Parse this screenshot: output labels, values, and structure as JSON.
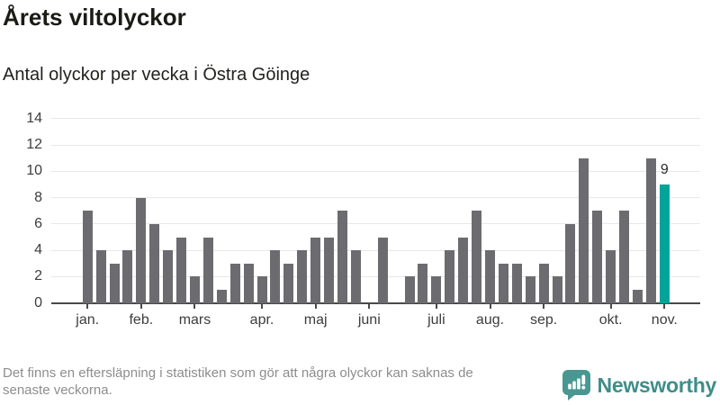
{
  "header": {
    "title": "Årets viltolyckor",
    "subtitle": "Antal olyckor per vecka i Östra Göinge"
  },
  "footer": {
    "note_line1": "Det finns en eftersläpning i statistiken som gör att några olyckor kan saknas de",
    "note_line2": "senaste veckorna.",
    "brand": "Newsworthy"
  },
  "icons": {
    "logo": "newsworthy-speech-bubble-bar-chart-icon"
  },
  "colors": {
    "bar": "#6c6c70",
    "highlight": "#00a49b",
    "grid": "#e8e8e8",
    "axis": "#4a4a4a",
    "logo_icon": "#489792",
    "logo_text": "#3e8e89",
    "note_text": "#8d8d8d"
  },
  "chart_data": {
    "type": "bar",
    "title": "Årets viltolyckor",
    "subtitle": "Antal olyckor per vecka i Östra Göinge",
    "x_unit": "vecka",
    "values": [
      7,
      4,
      3,
      4,
      8,
      6,
      4,
      5,
      2,
      5,
      1,
      3,
      3,
      2,
      4,
      3,
      4,
      5,
      5,
      7,
      4,
      0,
      5,
      0,
      2,
      3,
      2,
      4,
      5,
      7,
      4,
      3,
      3,
      2,
      3,
      2,
      6,
      11,
      7,
      4,
      7,
      1,
      11,
      9
    ],
    "highlight_index": 43,
    "highlight_label": "9",
    "yticks": [
      0,
      2,
      4,
      6,
      8,
      10,
      12,
      14
    ],
    "ylim": [
      0,
      14
    ],
    "grid": "horizontal",
    "legend": "none",
    "month_ticks": [
      {
        "label": "jan.",
        "week": 0
      },
      {
        "label": "feb.",
        "week": 4
      },
      {
        "label": "mars",
        "week": 8
      },
      {
        "label": "apr.",
        "week": 13
      },
      {
        "label": "maj",
        "week": 17
      },
      {
        "label": "juni",
        "week": 21
      },
      {
        "label": "juli",
        "week": 26
      },
      {
        "label": "aug.",
        "week": 30
      },
      {
        "label": "sep.",
        "week": 34
      },
      {
        "label": "okt.",
        "week": 39
      },
      {
        "label": "nov.",
        "week": 43
      }
    ],
    "colors": {
      "bar": "#6c6c70",
      "highlight": "#00a49b"
    }
  }
}
